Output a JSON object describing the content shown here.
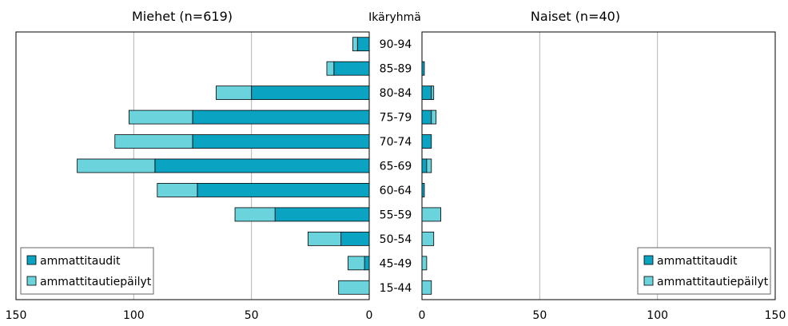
{
  "chart_data": {
    "type": "bar",
    "orientation": "horizontal",
    "layout": "population-pyramid",
    "category_header": "Ikäryhmä",
    "categories": [
      "90-94",
      "85-89",
      "80-84",
      "75-79",
      "70-74",
      "65-69",
      "60-64",
      "55-59",
      "50-54",
      "45-49",
      "15-44"
    ],
    "xlim": [
      0,
      150
    ],
    "xticks": [
      "0",
      "50",
      "100",
      "150"
    ],
    "grid": true,
    "stacked": true,
    "colors": {
      "ammattitaudit": "#0aa3c2",
      "ammattitautiepäilyt": "#6bd3dc"
    },
    "panels": [
      {
        "id": "men",
        "title": "Miehet (n=619)",
        "direction": "left",
        "legend_position": "bottom-left",
        "legend": [
          "ammattitaudit",
          "ammattitautiepäilyt"
        ],
        "series": [
          {
            "name": "ammattitaudit",
            "values": [
              5,
              15,
              50,
              75,
              75,
              91,
              73,
              40,
              12,
              2,
              0
            ]
          },
          {
            "name": "ammattitautiepäilyt",
            "values": [
              2,
              3,
              15,
              27,
              33,
              33,
              17,
              17,
              14,
              7,
              13
            ]
          }
        ]
      },
      {
        "id": "women",
        "title": "Naiset (n=40)",
        "direction": "right",
        "legend_position": "bottom-right",
        "legend": [
          "ammattitaudit",
          "ammattitautiepäilyt"
        ],
        "series": [
          {
            "name": "ammattitaudit",
            "values": [
              0,
              1,
              4,
              4,
              4,
              2,
              1,
              0,
              0,
              0,
              0
            ]
          },
          {
            "name": "ammattitautiepäilyt",
            "values": [
              0,
              0,
              1,
              2,
              0,
              2,
              0,
              8,
              5,
              2,
              4
            ]
          }
        ]
      }
    ]
  }
}
